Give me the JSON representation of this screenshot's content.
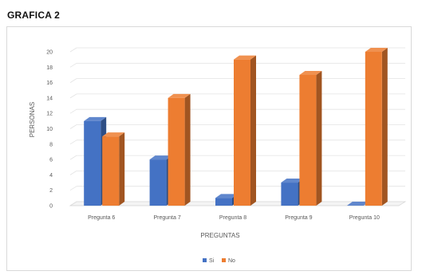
{
  "page": {
    "title": "GRAFICA 2"
  },
  "chart_data": {
    "type": "bar",
    "title": "",
    "xlabel": "PREGUNTAS",
    "ylabel": "PERSONAS",
    "categories": [
      "Pregunta 6",
      "Pregunta 7",
      "Pregunta 8",
      "Pregunta 9",
      "Pregunta 10"
    ],
    "series": [
      {
        "name": "Si",
        "color": "#4472C4",
        "values": [
          11,
          6,
          1,
          3,
          0
        ]
      },
      {
        "name": "No",
        "color": "#ED7D31",
        "values": [
          9,
          14,
          19,
          17,
          20
        ]
      }
    ],
    "ylim": [
      0,
      20
    ],
    "yticks": [
      0,
      2,
      4,
      6,
      8,
      10,
      12,
      14,
      16,
      18,
      20
    ],
    "grid": true,
    "legend": "bottom",
    "style": "3d-column"
  }
}
